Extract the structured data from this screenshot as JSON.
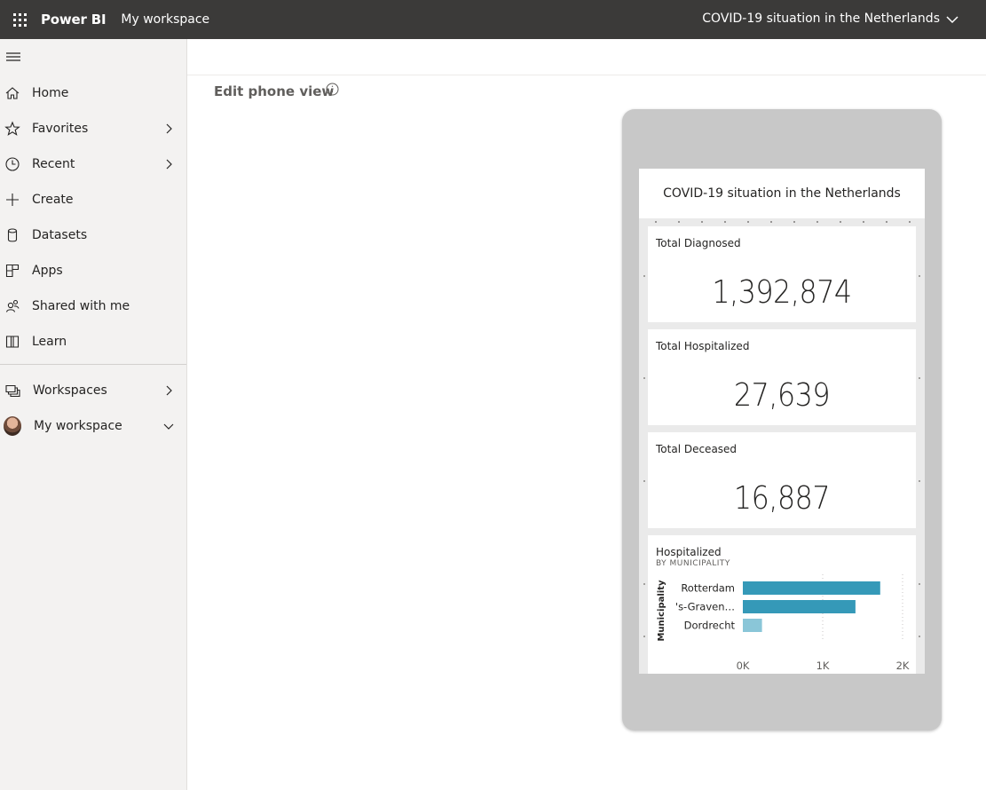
{
  "topbar": {
    "app_name": "Power BI",
    "workspace": "My workspace",
    "report_title": "COVID-19 situation in the Netherlands"
  },
  "nav": {
    "items": [
      {
        "label": "Home",
        "icon": "home-icon"
      },
      {
        "label": "Favorites",
        "icon": "star-icon"
      },
      {
        "label": "Recent",
        "icon": "clock-icon"
      },
      {
        "label": "Create",
        "icon": "plus-icon"
      },
      {
        "label": "Datasets",
        "icon": "database-icon"
      },
      {
        "label": "Apps",
        "icon": "apps-icon"
      },
      {
        "label": "Shared with me",
        "icon": "shared-icon"
      },
      {
        "label": "Learn",
        "icon": "book-icon"
      }
    ],
    "workspaces_label": "Workspaces",
    "my_workspace_label": "My workspace"
  },
  "main": {
    "edit_title": "Edit phone view"
  },
  "phone": {
    "header_title": "COVID-19 situation in the Netherlands",
    "cards": [
      {
        "title": "Total Diagnosed",
        "value": "1,392,874"
      },
      {
        "title": "Total Hospitalized",
        "value": "27,639"
      },
      {
        "title": "Total Deceased",
        "value": "16,887"
      }
    ]
  },
  "chart_data": {
    "type": "bar",
    "orientation": "horizontal",
    "title": "Hospitalized",
    "subtitle": "BY MUNICIPALITY",
    "ylabel": "Municipality",
    "xlabel": "",
    "categories": [
      "Rotterdam",
      "'s-Graven…",
      "Dordrecht"
    ],
    "values": [
      1720,
      1410,
      240
    ],
    "xlim": [
      0,
      2000
    ],
    "ticks": [
      0,
      1000,
      2000
    ],
    "tick_labels": [
      "0K",
      "1K",
      "2K"
    ],
    "colors": [
      "#3599b8",
      "#3599b8",
      "#8ac6d8"
    ],
    "grid": true
  }
}
